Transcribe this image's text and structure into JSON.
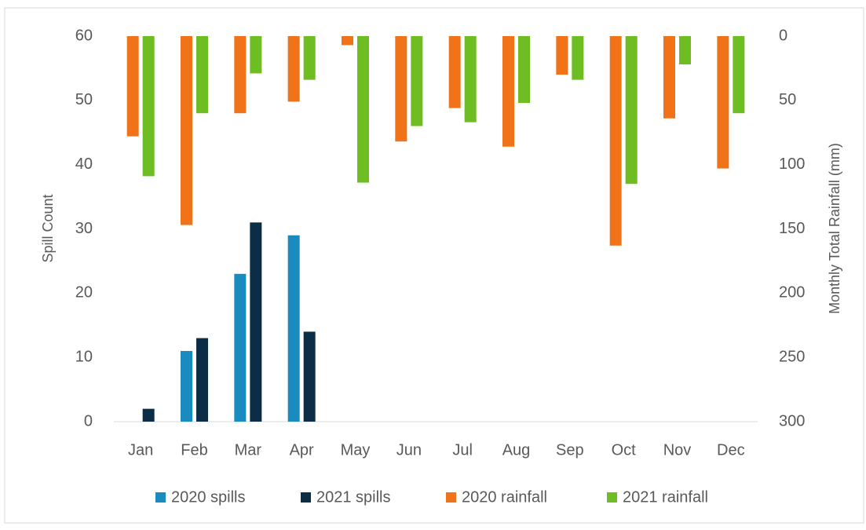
{
  "chart_data": {
    "type": "bar",
    "y_label": "Spill Count",
    "y2_label": "Monthly Total Rainfall (mm)",
    "categories": [
      "Jan",
      "Feb",
      "Mar",
      "Apr",
      "May",
      "Jun",
      "Jul",
      "Aug",
      "Sep",
      "Oct",
      "Nov",
      "Dec"
    ],
    "ylim": [
      0,
      60
    ],
    "yticks": [
      0,
      10,
      20,
      30,
      40,
      50,
      60
    ],
    "y2lim": [
      0,
      300
    ],
    "y2ticks": [
      0,
      50,
      100,
      150,
      200,
      250,
      300
    ],
    "y2_inverted": true,
    "grid": false,
    "legend": "bottom",
    "series": [
      {
        "name": "2020 spills",
        "color": "#1a8bbf",
        "slot": 0,
        "values": [
          null,
          11,
          23,
          29,
          null,
          null,
          null,
          null,
          null,
          null,
          null,
          null
        ]
      },
      {
        "name": "2021 spills",
        "color": "#0b2d45",
        "slot": 1,
        "values": [
          2,
          13,
          31,
          14,
          null,
          null,
          null,
          null,
          null,
          null,
          null,
          null
        ]
      },
      {
        "name": "2020 rainfall",
        "color": "#f07219",
        "axis": "y2",
        "slot": 0,
        "values": [
          78,
          147,
          60,
          51,
          7,
          82,
          56,
          86,
          30,
          163,
          64,
          103
        ]
      },
      {
        "name": "2021 rainfall",
        "color": "#6ebd23",
        "axis": "y2",
        "slot": 1,
        "values": [
          109,
          60,
          29,
          34,
          114,
          70,
          67,
          52,
          34,
          115,
          22,
          60
        ]
      }
    ]
  }
}
